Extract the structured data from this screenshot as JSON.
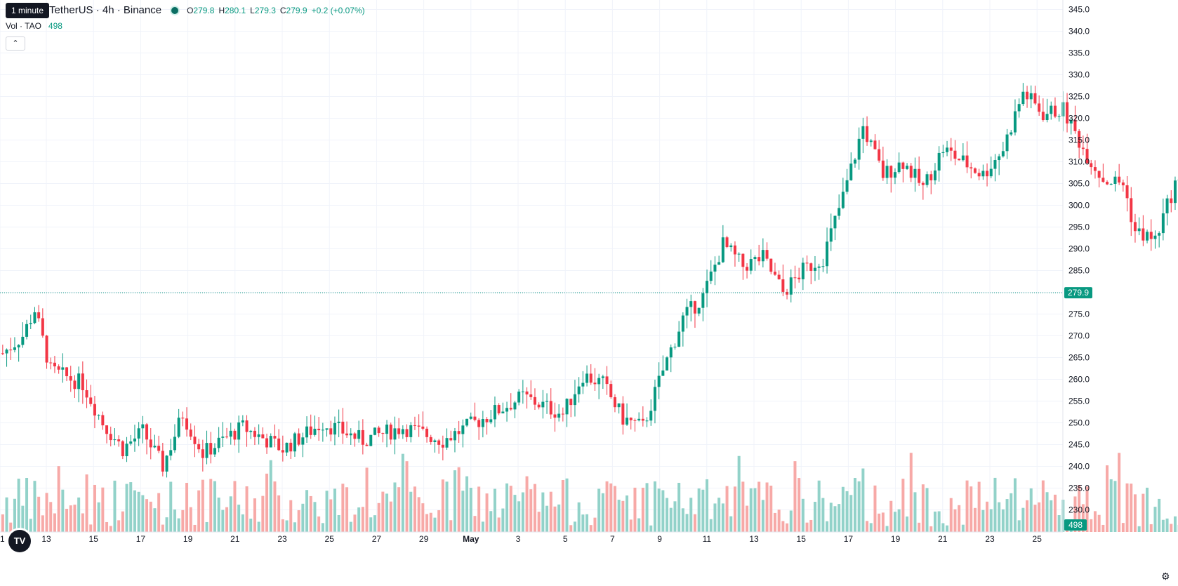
{
  "header": {
    "tooltip": "1 minute",
    "symbol": "TetherUS · 4h · Binance",
    "ohlc": [
      {
        "k": "O",
        "v": "279.8"
      },
      {
        "k": "H",
        "v": "280.1"
      },
      {
        "k": "L",
        "v": "279.3"
      },
      {
        "k": "C",
        "v": "279.9"
      }
    ],
    "change": "+0.2 (+0.07%)",
    "vol_label": "Vol · TAO",
    "vol_value": "498",
    "collapse_icon": "chevron-up-icon",
    "logo_text": "TV"
  },
  "colors": {
    "up": "#089981",
    "down": "#f23645",
    "vol_up": "#92d2c9",
    "vol_down": "#f7a9a7",
    "grid": "#f0f3fa"
  },
  "chart_data": {
    "type": "candlestick",
    "y_ticks": [
      "230.0",
      "235.0",
      "240.0",
      "245.0",
      "250.0",
      "255.0",
      "260.0",
      "265.0",
      "270.0",
      "275.0",
      "280.0",
      "285.0",
      "290.0",
      "295.0",
      "300.0",
      "305.0",
      "310.0",
      "315.0",
      "320.0",
      "325.0",
      "330.0",
      "335.0",
      "340.0",
      "345.0"
    ],
    "ylim": [
      226.5,
      345.5
    ],
    "x_ticks": [
      "1",
      "13",
      "15",
      "17",
      "19",
      "21",
      "23",
      "25",
      "27",
      "29",
      "May",
      "3",
      "5",
      "7",
      "9",
      "11",
      "13",
      "15",
      "17",
      "19",
      "21",
      "23",
      "25"
    ],
    "last_price": "279.9",
    "last_volume": "498",
    "anchors": [
      [
        0,
        266
      ],
      [
        5,
        270
      ],
      [
        8,
        276
      ],
      [
        12,
        262
      ],
      [
        20,
        259
      ],
      [
        25,
        250
      ],
      [
        30,
        244
      ],
      [
        35,
        248
      ],
      [
        40,
        240
      ],
      [
        45,
        252
      ],
      [
        50,
        243
      ],
      [
        60,
        249
      ],
      [
        70,
        244
      ],
      [
        80,
        250
      ],
      [
        90,
        246
      ],
      [
        100,
        249
      ],
      [
        110,
        246
      ],
      [
        120,
        251
      ],
      [
        130,
        256
      ],
      [
        140,
        252
      ],
      [
        145,
        261
      ],
      [
        150,
        259
      ],
      [
        155,
        251
      ],
      [
        160,
        249
      ],
      [
        165,
        262
      ],
      [
        170,
        274
      ],
      [
        175,
        279
      ],
      [
        180,
        291
      ],
      [
        185,
        286
      ],
      [
        190,
        288
      ],
      [
        195,
        280
      ],
      [
        200,
        285
      ],
      [
        205,
        288
      ],
      [
        210,
        302
      ],
      [
        215,
        318
      ],
      [
        220,
        307
      ],
      [
        225,
        310
      ],
      [
        230,
        304
      ],
      [
        235,
        313
      ],
      [
        240,
        310
      ],
      [
        245,
        307
      ],
      [
        250,
        313
      ],
      [
        255,
        326
      ],
      [
        260,
        321
      ],
      [
        265,
        322
      ],
      [
        270,
        313
      ],
      [
        275,
        306
      ],
      [
        280,
        305
      ],
      [
        283,
        294
      ],
      [
        288,
        292
      ],
      [
        293,
        305
      ],
      [
        298,
        303
      ],
      [
        303,
        287
      ],
      [
        308,
        283
      ],
      [
        315,
        274
      ],
      [
        320,
        268
      ],
      [
        327,
        268
      ],
      [
        332,
        261
      ],
      [
        340,
        261
      ],
      [
        347,
        261
      ],
      [
        352,
        271
      ],
      [
        357,
        280
      ],
      [
        362,
        282
      ],
      [
        368,
        289
      ],
      [
        373,
        279
      ],
      [
        378,
        266
      ],
      [
        383,
        258
      ],
      [
        388,
        272
      ],
      [
        392,
        279
      ],
      [
        395,
        280
      ]
    ]
  }
}
